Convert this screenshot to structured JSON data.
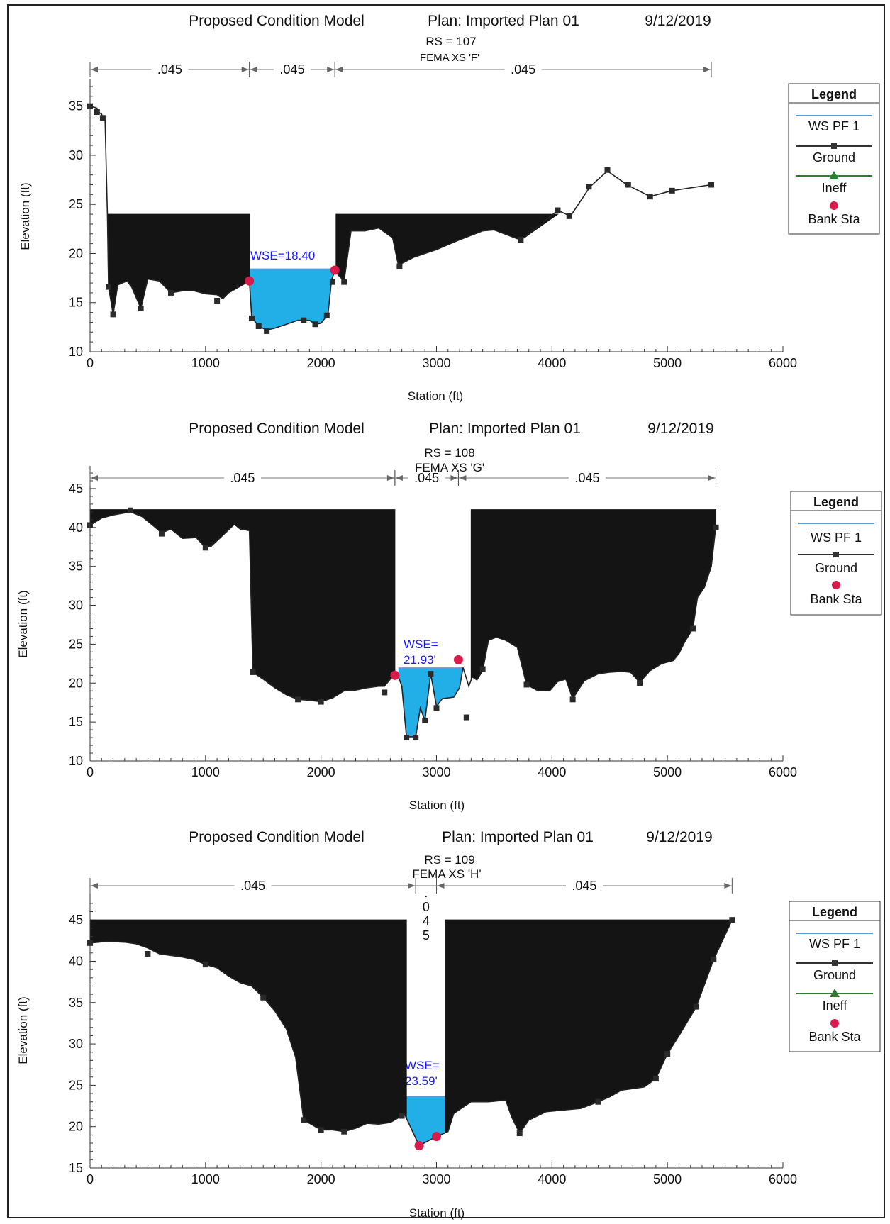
{
  "colors": {
    "water": "#22aee6",
    "ground": "#141414",
    "ws_line": "#5b9bd5",
    "ineff": "#2e7d32",
    "bank": "#d81b4a",
    "wse_text": "#1a1aff"
  },
  "charts": [
    {
      "header": {
        "model": "Proposed Condition Model",
        "plan": "Plan: Imported Plan 01",
        "date": "9/12/2019"
      },
      "rs": "RS = 107",
      "xs_name": "FEMA XS 'F'",
      "xlabel": "Station (ft)",
      "ylabel": "Elevation (ft)",
      "wse_label": [
        "WSE=18.40"
      ],
      "legend": {
        "title": "Legend",
        "items": [
          "WS PF 1",
          "Ground",
          "Ineff",
          "Bank Sta"
        ]
      }
    },
    {
      "header": {
        "model": "Proposed Condition Model",
        "plan": "Plan: Imported Plan 01",
        "date": "9/12/2019"
      },
      "rs": "RS = 108",
      "xs_name": "FEMA XS 'G'",
      "xlabel": "Station (ft)",
      "ylabel": "Elevation (ft)",
      "wse_label": [
        "WSE=",
        "21.93'"
      ],
      "legend": {
        "title": "Legend",
        "items": [
          "WS PF 1",
          "Ground",
          "Bank Sta"
        ]
      }
    },
    {
      "header": {
        "model": "Proposed Condition Model",
        "plan": "Plan: Imported Plan 01",
        "date": "9/12/2019"
      },
      "rs": "RS = 109",
      "xs_name": "FEMA XS 'H'",
      "xlabel": "Station (ft)",
      "ylabel": "Elevation (ft)",
      "wse_label": [
        "WSE=",
        "23.59'"
      ],
      "legend": {
        "title": "Legend",
        "items": [
          "WS PF 1",
          "Ground",
          "Ineff",
          "Bank Sta"
        ]
      }
    }
  ],
  "chart_data": [
    {
      "type": "area",
      "xlim": [
        0,
        6000
      ],
      "ylim": [
        10,
        37
      ],
      "xticks": [
        0,
        1000,
        2000,
        3000,
        4000,
        5000,
        6000
      ],
      "yticks": [
        10,
        15,
        20,
        25,
        30,
        35
      ],
      "wse": 18.4,
      "wse_range": [
        1380,
        2120
      ],
      "ground": [
        [
          0,
          35
        ],
        [
          60,
          34.8
        ],
        [
          70,
          34.4
        ],
        [
          100,
          34.2
        ],
        [
          110,
          33.8
        ],
        [
          130,
          33.6
        ],
        [
          150,
          24
        ],
        [
          160,
          16.6
        ],
        [
          200,
          13.8
        ],
        [
          240,
          16.8
        ],
        [
          320,
          17.2
        ],
        [
          360,
          16.6
        ],
        [
          440,
          14.4
        ],
        [
          500,
          17.4
        ],
        [
          600,
          17.2
        ],
        [
          700,
          16
        ],
        [
          800,
          16.2
        ],
        [
          900,
          16.2
        ],
        [
          1000,
          15.9
        ],
        [
          1100,
          15.8
        ],
        [
          1150,
          15.4
        ],
        [
          1200,
          16
        ],
        [
          1380,
          17.2
        ],
        [
          1400,
          13.5
        ],
        [
          1460,
          12.6
        ],
        [
          1530,
          12.2
        ],
        [
          1600,
          12.4
        ],
        [
          1700,
          12.8
        ],
        [
          1800,
          13.2
        ],
        [
          1900,
          13.2
        ],
        [
          1950,
          12.8
        ],
        [
          2000,
          12.9
        ],
        [
          2060,
          13.8
        ],
        [
          2080,
          16
        ],
        [
          2090,
          17.2
        ],
        [
          2120,
          18.3
        ],
        [
          2150,
          17.8
        ],
        [
          2200,
          17.2
        ],
        [
          2260,
          22.3
        ],
        [
          2380,
          22.3
        ],
        [
          2500,
          22.6
        ],
        [
          2620,
          21.6
        ],
        [
          2670,
          18.8
        ],
        [
          2800,
          19.6
        ],
        [
          3000,
          20.4
        ],
        [
          3200,
          21.4
        ],
        [
          3400,
          22.3
        ],
        [
          3500,
          22.4
        ],
        [
          3700,
          21.5
        ],
        [
          3760,
          21.6
        ],
        [
          4050,
          24.4
        ],
        [
          4160,
          23.8
        ],
        [
          4330,
          26.8
        ],
        [
          4480,
          28.4
        ],
        [
          4650,
          27
        ],
        [
          4850,
          25.8
        ],
        [
          5040,
          26.4
        ],
        [
          5380,
          27
        ]
      ],
      "ineff_blocks": [
        [
          150,
          1380,
          24
        ],
        [
          2130,
          4050,
          24
        ]
      ],
      "ground_markers": [
        [
          0,
          35
        ],
        [
          60,
          34.4
        ],
        [
          110,
          33.8
        ],
        [
          160,
          16.6
        ],
        [
          200,
          13.8
        ],
        [
          440,
          14.4
        ],
        [
          700,
          16
        ],
        [
          1100,
          15.2
        ],
        [
          1400,
          13.4
        ],
        [
          1460,
          12.6
        ],
        [
          1530,
          12.1
        ],
        [
          1850,
          13.2
        ],
        [
          1950,
          12.8
        ],
        [
          2050,
          13.7
        ],
        [
          2100,
          17.1
        ],
        [
          2200,
          17.1
        ],
        [
          2680,
          18.7
        ],
        [
          3730,
          21.4
        ],
        [
          4050,
          24.4
        ],
        [
          4150,
          23.8
        ],
        [
          4320,
          26.8
        ],
        [
          4480,
          28.5
        ],
        [
          4660,
          27
        ],
        [
          4850,
          25.8
        ],
        [
          5040,
          26.4
        ],
        [
          5380,
          27
        ]
      ],
      "bank_stations": [
        [
          1380,
          17.2
        ],
        [
          2120,
          18.3
        ]
      ],
      "n_values": [
        {
          "from": 0,
          "to": 1380,
          "label": ".045"
        },
        {
          "from": 1380,
          "to": 2120,
          "label": ".045"
        },
        {
          "from": 2120,
          "to": 5380,
          "label": ".045"
        }
      ]
    },
    {
      "type": "area",
      "xlim": [
        0,
        6000
      ],
      "ylim": [
        10,
        47
      ],
      "xticks": [
        0,
        1000,
        2000,
        3000,
        4000,
        5000,
        6000
      ],
      "yticks": [
        10,
        15,
        20,
        25,
        30,
        35,
        40,
        45
      ],
      "wse": 21.93,
      "wse_range": [
        2670,
        3230
      ],
      "ground": [
        [
          0,
          40.3
        ],
        [
          100,
          41.2
        ],
        [
          200,
          41.6
        ],
        [
          350,
          42
        ],
        [
          450,
          41.4
        ],
        [
          550,
          40.2
        ],
        [
          620,
          39.3
        ],
        [
          700,
          39.8
        ],
        [
          800,
          38.6
        ],
        [
          920,
          38.7
        ],
        [
          1000,
          37.4
        ],
        [
          1050,
          37.6
        ],
        [
          1150,
          39
        ],
        [
          1250,
          40.4
        ],
        [
          1300,
          39.8
        ],
        [
          1380,
          39.6
        ],
        [
          1410,
          21.4
        ],
        [
          1500,
          20.5
        ],
        [
          1600,
          19.4
        ],
        [
          1700,
          18.5
        ],
        [
          1800,
          17.9
        ],
        [
          1900,
          17.8
        ],
        [
          2000,
          17.6
        ],
        [
          2100,
          18.1
        ],
        [
          2200,
          19
        ],
        [
          2300,
          19.1
        ],
        [
          2400,
          19.4
        ],
        [
          2500,
          19.6
        ],
        [
          2550,
          19.6
        ],
        [
          2600,
          20.5
        ],
        [
          2670,
          20.8
        ],
        [
          2700,
          19.6
        ],
        [
          2740,
          13.1
        ],
        [
          2820,
          13.1
        ],
        [
          2860,
          16.8
        ],
        [
          2900,
          15.2
        ],
        [
          2950,
          21.2
        ],
        [
          3000,
          17
        ],
        [
          3050,
          18
        ],
        [
          3150,
          18.2
        ],
        [
          3200,
          19.4
        ],
        [
          3230,
          22
        ],
        [
          3280,
          19.6
        ],
        [
          3310,
          20.8
        ],
        [
          3350,
          20.4
        ],
        [
          3400,
          21.6
        ],
        [
          3450,
          25.5
        ],
        [
          3520,
          25.9
        ],
        [
          3600,
          25.5
        ],
        [
          3700,
          24.6
        ],
        [
          3780,
          19.8
        ],
        [
          3880,
          19
        ],
        [
          3980,
          19
        ],
        [
          4050,
          20.2
        ],
        [
          4120,
          20.5
        ],
        [
          4180,
          18
        ],
        [
          4280,
          20.3
        ],
        [
          4400,
          21.2
        ],
        [
          4500,
          21.4
        ],
        [
          4600,
          21.5
        ],
        [
          4680,
          21.4
        ],
        [
          4760,
          20.1
        ],
        [
          4850,
          21.6
        ],
        [
          4950,
          22.5
        ],
        [
          5050,
          22.9
        ],
        [
          5100,
          23.8
        ],
        [
          5150,
          25.3
        ],
        [
          5220,
          27
        ],
        [
          5260,
          31
        ],
        [
          5320,
          32.3
        ],
        [
          5380,
          35
        ],
        [
          5420,
          40.3
        ]
      ],
      "ineff_blocks": [
        [
          0,
          2640,
          42.3
        ],
        [
          3300,
          5420,
          42.3
        ]
      ],
      "ground_markers": [
        [
          0,
          40.3
        ],
        [
          350,
          42.2
        ],
        [
          620,
          39.2
        ],
        [
          1000,
          37.4
        ],
        [
          1410,
          21.4
        ],
        [
          1800,
          17.9
        ],
        [
          2000,
          17.6
        ],
        [
          2550,
          18.8
        ],
        [
          2740,
          13
        ],
        [
          2820,
          13
        ],
        [
          2900,
          15.2
        ],
        [
          2950,
          21.2
        ],
        [
          3000,
          16.8
        ],
        [
          3260,
          15.6
        ],
        [
          3400,
          21.8
        ],
        [
          3780,
          19.8
        ],
        [
          4180,
          17.9
        ],
        [
          4760,
          20
        ],
        [
          5220,
          27
        ],
        [
          5420,
          40
        ]
      ],
      "bank_stations": [
        [
          2640,
          21
        ],
        [
          3190,
          23
        ]
      ],
      "n_values": [
        {
          "from": 0,
          "to": 2640,
          "label": ".045"
        },
        {
          "from": 2640,
          "to": 3190,
          "label": ".045"
        },
        {
          "from": 3190,
          "to": 5420,
          "label": ".045"
        }
      ]
    },
    {
      "type": "area",
      "xlim": [
        0,
        6000
      ],
      "ylim": [
        15,
        47.5
      ],
      "xticks": [
        0,
        1000,
        2000,
        3000,
        4000,
        5000,
        6000
      ],
      "yticks": [
        15,
        20,
        25,
        30,
        35,
        40,
        45
      ],
      "wse": 23.59,
      "wse_range": [
        2720,
        3100
      ],
      "ground": [
        [
          0,
          42.2
        ],
        [
          150,
          42.4
        ],
        [
          300,
          42.3
        ],
        [
          400,
          42.1
        ],
        [
          500,
          41.6
        ],
        [
          600,
          40.9
        ],
        [
          700,
          40.7
        ],
        [
          800,
          40.5
        ],
        [
          900,
          40.2
        ],
        [
          1000,
          39.6
        ],
        [
          1100,
          39.2
        ],
        [
          1200,
          38.2
        ],
        [
          1300,
          37.4
        ],
        [
          1400,
          37
        ],
        [
          1500,
          35.6
        ],
        [
          1600,
          34
        ],
        [
          1700,
          31.8
        ],
        [
          1780,
          28.4
        ],
        [
          1850,
          20.8
        ],
        [
          2000,
          19.6
        ],
        [
          2100,
          19.6
        ],
        [
          2200,
          19.4
        ],
        [
          2300,
          19.8
        ],
        [
          2400,
          20.4
        ],
        [
          2500,
          20.3
        ],
        [
          2600,
          20.5
        ],
        [
          2700,
          21.3
        ],
        [
          2720,
          21.6
        ],
        [
          2850,
          17.7
        ],
        [
          3000,
          18.8
        ],
        [
          3100,
          19.4
        ],
        [
          3150,
          21.6
        ],
        [
          3300,
          23
        ],
        [
          3450,
          23
        ],
        [
          3600,
          23.2
        ],
        [
          3650,
          21.2
        ],
        [
          3720,
          19.2
        ],
        [
          3800,
          20.8
        ],
        [
          3950,
          21.8
        ],
        [
          4100,
          22
        ],
        [
          4250,
          22.2
        ],
        [
          4400,
          23
        ],
        [
          4500,
          23.6
        ],
        [
          4600,
          24.4
        ],
        [
          4700,
          24.6
        ],
        [
          4800,
          24.8
        ],
        [
          4900,
          25.8
        ],
        [
          5000,
          28.8
        ],
        [
          5100,
          31
        ],
        [
          5250,
          34.5
        ],
        [
          5400,
          40.2
        ],
        [
          5560,
          45
        ]
      ],
      "ineff_blocks": [
        [
          0,
          2740,
          45
        ],
        [
          3080,
          5560,
          45
        ]
      ],
      "ground_markers": [
        [
          0,
          42.2
        ],
        [
          500,
          40.9
        ],
        [
          1000,
          39.6
        ],
        [
          1500,
          35.6
        ],
        [
          1850,
          20.8
        ],
        [
          2000,
          19.6
        ],
        [
          2200,
          19.4
        ],
        [
          2700,
          21.3
        ],
        [
          3720,
          19.2
        ],
        [
          4400,
          23
        ],
        [
          4900,
          25.8
        ],
        [
          5000,
          28.8
        ],
        [
          5250,
          34.5
        ],
        [
          5400,
          40.2
        ],
        [
          5560,
          45
        ]
      ],
      "bank_stations": [
        [
          2850,
          17.7
        ],
        [
          3000,
          18.8
        ]
      ],
      "n_values": [
        {
          "from": 0,
          "to": 2820,
          "label": ".045"
        },
        {
          "from": 2820,
          "to": 3000,
          "label": ".045"
        },
        {
          "from": 3000,
          "to": 5560,
          "label": ".045"
        }
      ]
    }
  ]
}
